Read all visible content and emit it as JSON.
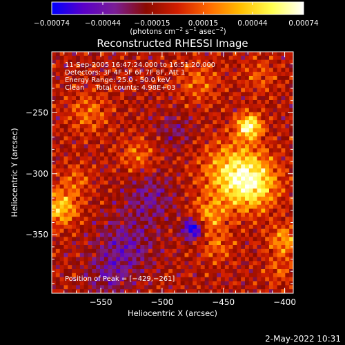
{
  "chart_data": {
    "type": "heatmap",
    "title": "Reconstructed RHESSI Image",
    "xlabel": "Heliocentric X (arcsec)",
    "ylabel": "Heliocentric Y (arcsec)",
    "xlim": [
      -590,
      -393
    ],
    "ylim": [
      -398,
      -200
    ],
    "x_ticks": [
      -550,
      -500,
      -450,
      -400
    ],
    "x_tick_labels": [
      "−550",
      "−500",
      "−450",
      "−400"
    ],
    "y_ticks": [
      -250,
      -300,
      -350
    ],
    "y_tick_labels": [
      "−250",
      "−300",
      "−350"
    ],
    "colorbar": {
      "vmin": -0.00074,
      "vmax": 0.00074,
      "ticks": [
        -0.00074,
        -0.00044,
        -0.00015,
        0.00015,
        0.00044,
        0.00074
      ],
      "tick_labels": [
        "−0.00074",
        "−0.00044",
        "−0.00015",
        "0.00015",
        "0.00044",
        "0.00074"
      ],
      "unit_main": "(photons cm",
      "unit_sup1": "−2",
      "unit_mid1": " s",
      "unit_sup2": "−1",
      "unit_mid2": " asec",
      "unit_sup3": "−2",
      "unit_end": ")",
      "colormap": [
        "#0000ff",
        "#5a00c8",
        "#7a1e96",
        "#8a0a00",
        "#d21e00",
        "#ff6a00",
        "#ffbe00",
        "#ffff50",
        "#ffffff"
      ]
    },
    "annotations": [
      "11-Sep-2005 16:47:24.000 to 16:51:20.000",
      "Detectors: 3F 4F 5F 6F 7F 8F, Att 1",
      "Energy Range: 25.0 - 50.0 keV",
      "Clean     Total counts: 4.98E+03"
    ],
    "peak_label": "Position of Peak = [−429,−261]",
    "peak": {
      "x": -429,
      "y": -261
    },
    "sources": [
      {
        "x": -429,
        "y": -261,
        "amp": 0.00074,
        "sigma": 7
      },
      {
        "x": -440,
        "y": -300,
        "amp": 0.00058,
        "sigma": 18
      },
      {
        "x": -425,
        "y": -310,
        "amp": 0.00042,
        "sigma": 14
      },
      {
        "x": -583,
        "y": -328,
        "amp": 0.00052,
        "sigma": 10
      },
      {
        "x": -570,
        "y": -305,
        "amp": 0.00022,
        "sigma": 9
      },
      {
        "x": -520,
        "y": -285,
        "amp": 0.00026,
        "sigma": 10
      },
      {
        "x": -462,
        "y": -335,
        "amp": 0.00034,
        "sigma": 10
      },
      {
        "x": -455,
        "y": -360,
        "amp": 0.00024,
        "sigma": 9
      },
      {
        "x": -400,
        "y": -355,
        "amp": 0.0004,
        "sigma": 9
      },
      {
        "x": -405,
        "y": -380,
        "amp": 0.0002,
        "sigma": 8
      },
      {
        "x": -560,
        "y": -250,
        "amp": 0.00026,
        "sigma": 12
      },
      {
        "x": -470,
        "y": -225,
        "amp": 0.00024,
        "sigma": 12
      },
      {
        "x": -420,
        "y": -220,
        "amp": 0.0002,
        "sigma": 10
      },
      {
        "x": -475,
        "y": -345,
        "amp": -0.0007,
        "sigma": 6
      },
      {
        "x": -530,
        "y": -360,
        "amp": -0.0003,
        "sigma": 16
      },
      {
        "x": -510,
        "y": -320,
        "amp": -0.00026,
        "sigma": 14
      },
      {
        "x": -545,
        "y": -385,
        "amp": -0.00022,
        "sigma": 12
      },
      {
        "x": -490,
        "y": -265,
        "amp": -0.0002,
        "sigma": 10
      }
    ]
  },
  "footer": {
    "date": "2-May-2022 10:31"
  }
}
